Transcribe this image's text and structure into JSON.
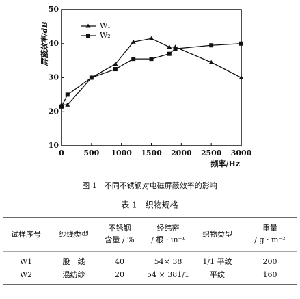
{
  "chart_data": {
    "type": "line",
    "y_label": "屏蔽效率/dB",
    "x_label": "频率/Hz",
    "x": [
      0,
      100,
      500,
      900,
      1200,
      1500,
      1800,
      1900,
      2500,
      3000
    ],
    "series": [
      {
        "name": "W₁",
        "color": "#111111",
        "marker": "triangle",
        "values": [
          22,
          22,
          30,
          34,
          40.5,
          41.5,
          39,
          39,
          34.5,
          30
        ]
      },
      {
        "name": "W₂",
        "color": "#111111",
        "marker": "square",
        "values": [
          21.5,
          25,
          30,
          32.5,
          35.5,
          35.5,
          37,
          38.5,
          39.5,
          40
        ]
      }
    ],
    "xlim": [
      0,
      3000
    ],
    "ylim": [
      10,
      50
    ],
    "xticks": [
      0,
      500,
      1000,
      1500,
      2000,
      2500,
      3000
    ],
    "yticks": [
      10,
      20,
      30,
      40,
      50
    ],
    "legend": "upper-left"
  },
  "caption": "图 1　不同不锈钢对电磁屏蔽效率的影响",
  "table": {
    "title": "表 1　织物规格",
    "header": [
      [
        "试样序号"
      ],
      [
        "纱线类型"
      ],
      [
        "不锈钢",
        "含量 / %"
      ],
      [
        "经纬密",
        "/ 根 · in⁻¹"
      ],
      [
        "织物类型"
      ],
      [
        "重量",
        "/ g · m⁻²"
      ]
    ],
    "rows": [
      [
        "W1",
        "股　线",
        "40",
        "54× 38",
        "1/1 平纹",
        "200"
      ],
      [
        "W2",
        "混纺纱",
        "20",
        "54 × 381/1",
        "平纹",
        "160"
      ]
    ]
  }
}
